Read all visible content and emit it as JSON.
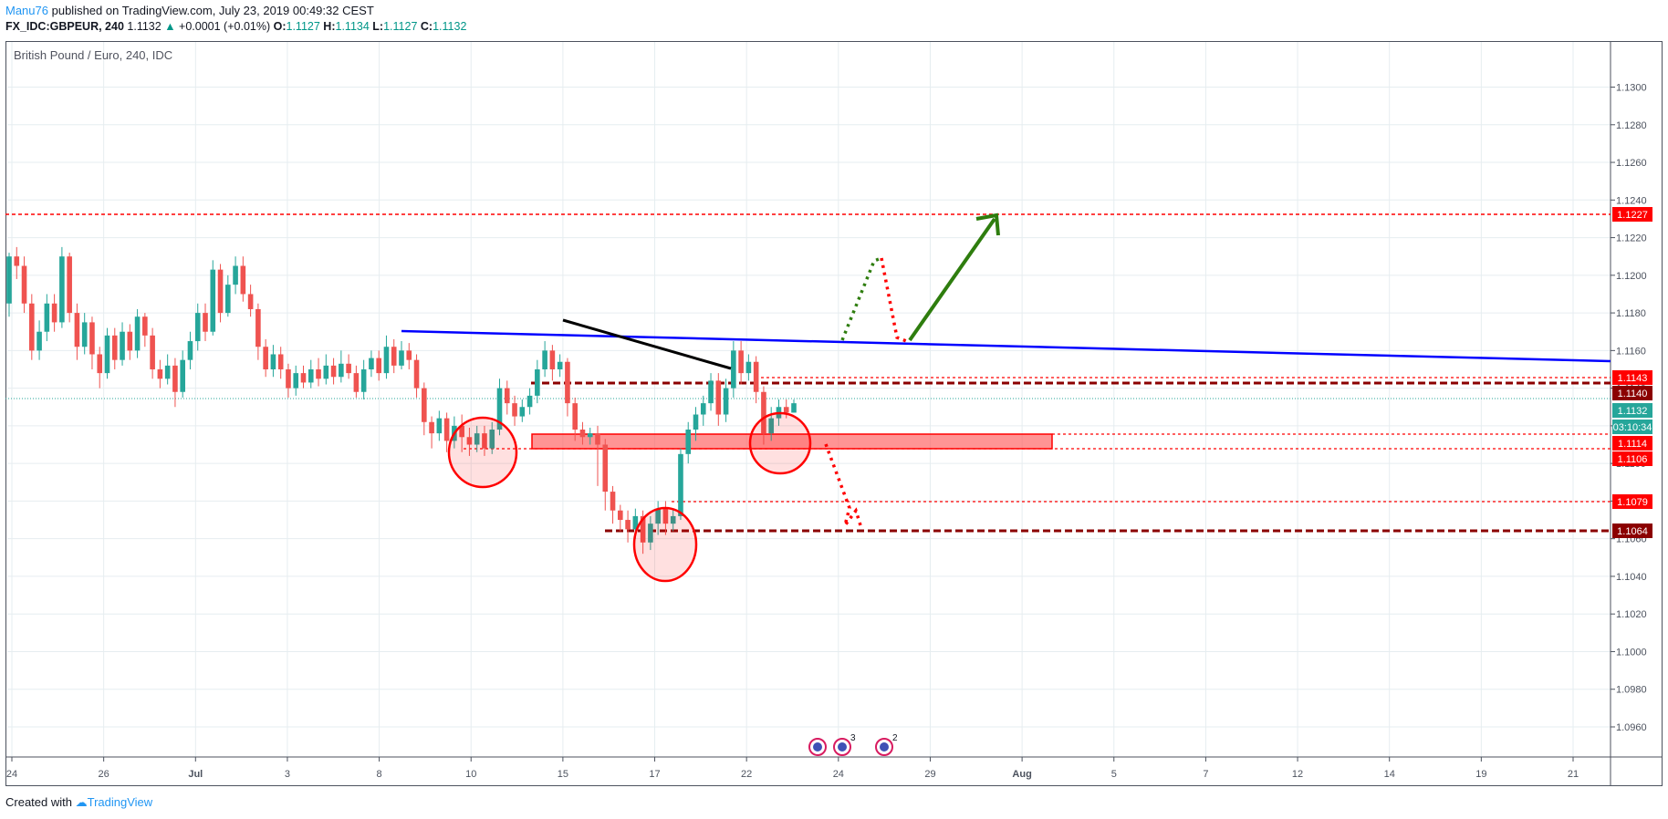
{
  "header": {
    "author": "Manu76",
    "published": "published on TradingView.com, July 23, 2019 00:49:32 CEST"
  },
  "symbol_bar": {
    "symbol": "FX_IDC:GBPEUR, 240",
    "last": "1.1132",
    "change": "+0.0001 (+0.01%)",
    "o_label": "O:",
    "o": "1.1127",
    "h_label": "H:",
    "h": "1.1134",
    "l_label": "L:",
    "l": "1.1127",
    "c_label": "C:",
    "c": "1.1132"
  },
  "footer": {
    "created_with": "Created with",
    "brand": "TradingView"
  },
  "colors": {
    "up": "#26a69a",
    "down": "#ef5350",
    "trend": "#0000ff",
    "target": "#ff0000",
    "support": "#8b0000",
    "arrow": "#2e7d0e",
    "grid": "#e6edf0"
  },
  "chart_data": {
    "type": "candlestick",
    "title": "British Pound / Euro, 240, IDC",
    "y_range": [
      1.0944,
      1.1324
    ],
    "y_ticks": [
      "1.1300",
      "1.1280",
      "1.1260",
      "1.1240",
      "1.1220",
      "1.1200",
      "1.1180",
      "1.1160",
      "1.1140",
      "1.1120",
      "1.1100",
      "1.1080",
      "1.1060",
      "1.1040",
      "1.1020",
      "1.1000",
      "1.0980",
      "1.0960"
    ],
    "x_ticks": [
      "24",
      "26",
      "Jul",
      "3",
      "8",
      "10",
      "15",
      "17",
      "22",
      "24",
      "29",
      "Aug",
      "5",
      "7",
      "12",
      "14",
      "19",
      "21"
    ],
    "price_labels": [
      {
        "text": "1.1227",
        "bg": "#ff0000"
      },
      {
        "text": "1.1143",
        "bg": "#ff0000"
      },
      {
        "text": "1.1140",
        "bg": "#8b0000"
      },
      {
        "text": "1.1132",
        "bg": "#26a69a"
      },
      {
        "text": "03:10:34",
        "bg": "#26a69a"
      },
      {
        "text": "1.1114",
        "bg": "#ff0000"
      },
      {
        "text": "1.1106",
        "bg": "#ff0000"
      },
      {
        "text": "1.1079",
        "bg": "#ff0000"
      },
      {
        "text": "1.1064",
        "bg": "#8b0000"
      }
    ],
    "candles": [
      [
        1.1185,
        1.121,
        1.1212,
        1.1178
      ],
      [
        1.121,
        1.1205,
        1.1215,
        1.1198
      ],
      [
        1.1205,
        1.1185,
        1.121,
        1.118
      ],
      [
        1.1185,
        1.116,
        1.119,
        1.1155
      ],
      [
        1.116,
        1.117,
        1.1176,
        1.1155
      ],
      [
        1.117,
        1.1185,
        1.119,
        1.1165
      ],
      [
        1.1185,
        1.1175,
        1.119,
        1.117
      ],
      [
        1.1175,
        1.121,
        1.1215,
        1.1172
      ],
      [
        1.121,
        1.118,
        1.1212,
        1.1175
      ],
      [
        1.118,
        1.1162,
        1.1185,
        1.1155
      ],
      [
        1.1162,
        1.1175,
        1.118,
        1.1158
      ],
      [
        1.1175,
        1.1158,
        1.1178,
        1.115
      ],
      [
        1.1158,
        1.1148,
        1.1162,
        1.114
      ],
      [
        1.1148,
        1.1168,
        1.1172,
        1.1145
      ],
      [
        1.1168,
        1.1155,
        1.1172,
        1.115
      ],
      [
        1.1155,
        1.117,
        1.1175,
        1.1152
      ],
      [
        1.117,
        1.116,
        1.1174,
        1.1155
      ],
      [
        1.116,
        1.1178,
        1.1182,
        1.1156
      ],
      [
        1.1178,
        1.1168,
        1.118,
        1.1162
      ],
      [
        1.1168,
        1.115,
        1.1172,
        1.1145
      ],
      [
        1.115,
        1.1145,
        1.1155,
        1.114
      ],
      [
        1.1145,
        1.1152,
        1.1158,
        1.1142
      ],
      [
        1.1152,
        1.1138,
        1.1156,
        1.113
      ],
      [
        1.1138,
        1.1155,
        1.116,
        1.1135
      ],
      [
        1.1155,
        1.1165,
        1.117,
        1.115
      ],
      [
        1.1165,
        1.118,
        1.1185,
        1.116
      ],
      [
        1.118,
        1.117,
        1.1185,
        1.1165
      ],
      [
        1.117,
        1.1203,
        1.1208,
        1.1168
      ],
      [
        1.1203,
        1.118,
        1.1206,
        1.1175
      ],
      [
        1.118,
        1.1195,
        1.12,
        1.1178
      ],
      [
        1.1195,
        1.1205,
        1.121,
        1.119
      ],
      [
        1.1205,
        1.119,
        1.121,
        1.1186
      ],
      [
        1.119,
        1.1182,
        1.1195,
        1.1178
      ],
      [
        1.1182,
        1.1162,
        1.1185,
        1.1155
      ],
      [
        1.1162,
        1.115,
        1.1166,
        1.1146
      ],
      [
        1.115,
        1.1158,
        1.1163,
        1.1146
      ],
      [
        1.1158,
        1.115,
        1.1162,
        1.1145
      ],
      [
        1.115,
        1.114,
        1.1153,
        1.1135
      ],
      [
        1.114,
        1.1148,
        1.1152,
        1.1136
      ],
      [
        1.1148,
        1.1143,
        1.1152,
        1.114
      ],
      [
        1.1143,
        1.115,
        1.1155,
        1.114
      ],
      [
        1.115,
        1.1145,
        1.1156,
        1.1141
      ],
      [
        1.1145,
        1.1152,
        1.1158,
        1.1142
      ],
      [
        1.1152,
        1.1146,
        1.1156,
        1.1142
      ],
      [
        1.1146,
        1.1153,
        1.116,
        1.1143
      ],
      [
        1.1153,
        1.1148,
        1.1158,
        1.1145
      ],
      [
        1.1148,
        1.1138,
        1.1152,
        1.1135
      ],
      [
        1.1138,
        1.115,
        1.1155,
        1.1134
      ],
      [
        1.115,
        1.1156,
        1.116,
        1.1146
      ],
      [
        1.1156,
        1.1148,
        1.116,
        1.1144
      ],
      [
        1.1148,
        1.1162,
        1.1168,
        1.1145
      ],
      [
        1.1162,
        1.1152,
        1.1166,
        1.1148
      ],
      [
        1.1152,
        1.116,
        1.1165,
        1.115
      ],
      [
        1.116,
        1.1155,
        1.1164,
        1.115
      ],
      [
        1.1155,
        1.114,
        1.1158,
        1.1135
      ],
      [
        1.114,
        1.1122,
        1.1143,
        1.1115
      ],
      [
        1.1122,
        1.1116,
        1.1125,
        1.1108
      ],
      [
        1.1116,
        1.1124,
        1.1128,
        1.1112
      ],
      [
        1.1124,
        1.1112,
        1.1127,
        1.1106
      ],
      [
        1.1112,
        1.112,
        1.1125,
        1.1108
      ],
      [
        1.112,
        1.1114,
        1.1126,
        1.1106
      ],
      [
        1.1114,
        1.111,
        1.1119,
        1.1104
      ],
      [
        1.111,
        1.1116,
        1.112,
        1.1106
      ],
      [
        1.1116,
        1.1108,
        1.112,
        1.1104
      ],
      [
        1.1108,
        1.1118,
        1.1122,
        1.1105
      ],
      [
        1.1118,
        1.114,
        1.1145,
        1.1115
      ],
      [
        1.114,
        1.1132,
        1.1144,
        1.1126
      ],
      [
        1.1132,
        1.1125,
        1.1136,
        1.112
      ],
      [
        1.1125,
        1.113,
        1.1134,
        1.1122
      ],
      [
        1.113,
        1.1136,
        1.114,
        1.1126
      ],
      [
        1.1136,
        1.115,
        1.1155,
        1.1132
      ],
      [
        1.115,
        1.116,
        1.1165,
        1.1146
      ],
      [
        1.116,
        1.115,
        1.1163,
        1.1144
      ],
      [
        1.115,
        1.1154,
        1.1158,
        1.1146
      ],
      [
        1.1154,
        1.1132,
        1.1156,
        1.1125
      ],
      [
        1.1132,
        1.1118,
        1.1135,
        1.1112
      ],
      [
        1.1118,
        1.1114,
        1.1122,
        1.111
      ],
      [
        1.1114,
        1.1116,
        1.1119,
        1.111
      ],
      [
        1.1116,
        1.111,
        1.112,
        1.1088
      ],
      [
        1.111,
        1.1085,
        1.1113,
        1.1075
      ],
      [
        1.1085,
        1.1075,
        1.1088,
        1.1068
      ],
      [
        1.1075,
        1.107,
        1.1078,
        1.1064
      ],
      [
        1.107,
        1.1065,
        1.1075,
        1.1058
      ],
      [
        1.1065,
        1.1072,
        1.1076,
        1.106
      ],
      [
        1.1072,
        1.1058,
        1.1075,
        1.1052
      ],
      [
        1.1058,
        1.1068,
        1.1072,
        1.1054
      ],
      [
        1.1068,
        1.1076,
        1.108,
        1.1062
      ],
      [
        1.1076,
        1.1068,
        1.108,
        1.1062
      ],
      [
        1.1068,
        1.1072,
        1.1076,
        1.1064
      ],
      [
        1.1072,
        1.1105,
        1.1108,
        1.107
      ],
      [
        1.1105,
        1.1118,
        1.1122,
        1.11
      ],
      [
        1.1118,
        1.1126,
        1.113,
        1.1112
      ],
      [
        1.1126,
        1.1132,
        1.1136,
        1.112
      ],
      [
        1.1132,
        1.1144,
        1.1148,
        1.1128
      ],
      [
        1.1144,
        1.1126,
        1.1148,
        1.112
      ],
      [
        1.1126,
        1.114,
        1.1145,
        1.1122
      ],
      [
        1.114,
        1.116,
        1.1165,
        1.1135
      ],
      [
        1.116,
        1.1148,
        1.1165,
        1.1142
      ],
      [
        1.1148,
        1.1154,
        1.1158,
        1.1144
      ],
      [
        1.1154,
        1.1138,
        1.1157,
        1.1132
      ],
      [
        1.1138,
        1.1116,
        1.1141,
        1.111
      ],
      [
        1.1116,
        1.1124,
        1.113,
        1.1112
      ],
      [
        1.1124,
        1.113,
        1.1134,
        1.112
      ],
      [
        1.113,
        1.1127,
        1.1134,
        1.1124
      ],
      [
        1.1127,
        1.1132,
        1.1134,
        1.1127
      ]
    ]
  },
  "indicator_icons": [
    {
      "name": "event-icon-1",
      "badge": ""
    },
    {
      "name": "event-icon-2",
      "badge": "3"
    },
    {
      "name": "event-icon-3",
      "badge": "2"
    }
  ]
}
